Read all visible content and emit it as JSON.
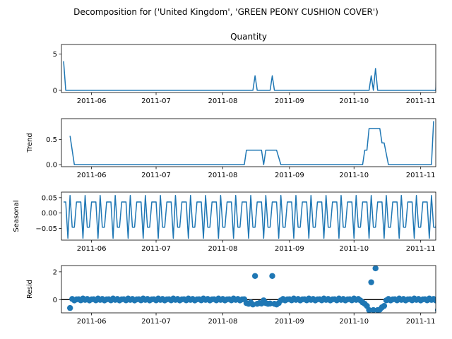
{
  "chart_data": {
    "type": "line",
    "suptitle": "Decomposition for ('United Kingdom', 'GREEN PEONY CUSHION COVER')",
    "x_start": "2011-05-19",
    "x_end": "2011-11-08",
    "xlim": [
      "2011-05-18",
      "2011-11-08"
    ],
    "xticks": [
      "2011-06-01",
      "2011-07-01",
      "2011-08-01",
      "2011-09-01",
      "2011-10-01",
      "2011-11-01"
    ],
    "xtick_labels": [
      "2011-06",
      "2011-07",
      "2011-08",
      "2011-09",
      "2011-10",
      "2011-11"
    ],
    "line_color": "#1f77b4",
    "panels": [
      {
        "id": "observed",
        "title": "Quantity",
        "ylabel": "",
        "style": "line",
        "ylim": [
          -0.3,
          6.3
        ],
        "yticks": [
          0,
          5
        ],
        "ytick_labels": [
          "0",
          "5"
        ],
        "baseline_zero": false,
        "default": 0,
        "values": [
          [
            0,
            4
          ],
          [
            1,
            0
          ],
          [
            88,
            0
          ],
          [
            89,
            2
          ],
          [
            90,
            0
          ],
          [
            96,
            0
          ],
          [
            97,
            2
          ],
          [
            98,
            0
          ],
          [
            142,
            0
          ],
          [
            143,
            2
          ],
          [
            144,
            0
          ],
          [
            145,
            3
          ],
          [
            146,
            0
          ],
          [
            173,
            0
          ],
          [
            174,
            6
          ]
        ]
      },
      {
        "id": "trend",
        "title": "",
        "ylabel": "Trend",
        "style": "line",
        "ylim": [
          -0.04,
          0.91
        ],
        "yticks": [
          0,
          0.5
        ],
        "ytick_labels": [
          "0.0",
          "0.5"
        ],
        "baseline_zero": false,
        "default": 0,
        "values": [
          [
            3,
            0.57
          ],
          [
            5,
            0
          ],
          [
            84,
            0
          ],
          [
            85,
            0.286
          ],
          [
            92,
            0.286
          ],
          [
            93,
            0
          ],
          [
            94,
            0.286
          ],
          [
            99,
            0.286
          ],
          [
            101,
            0
          ],
          [
            139,
            0
          ],
          [
            140,
            0.286
          ],
          [
            141,
            0.286
          ],
          [
            142,
            0.714
          ],
          [
            147,
            0.714
          ],
          [
            148,
            0.43
          ],
          [
            149,
            0.43
          ],
          [
            151,
            0
          ],
          [
            171,
            0
          ],
          [
            172,
            0.86
          ]
        ]
      },
      {
        "id": "seasonal",
        "title": "",
        "ylabel": "Seasonal",
        "style": "line",
        "ylim": [
          -0.088,
          0.068
        ],
        "yticks": [
          0.05,
          0,
          -0.05
        ],
        "ytick_labels": [
          "0.05",
          "0.00",
          "−0.05"
        ],
        "baseline_zero": false,
        "pattern": [
          0.036,
          0.036,
          -0.082,
          0.057,
          -0.046,
          -0.046,
          0.036
        ],
        "n": 175
      },
      {
        "id": "resid",
        "title": "",
        "ylabel": "Resid",
        "style": "scatter",
        "ylim": [
          -0.95,
          2.45
        ],
        "yticks": [
          0,
          2
        ],
        "ytick_labels": [
          "0",
          "2"
        ],
        "baseline_zero": true,
        "default": 0,
        "jitter": [
          0.03,
          -0.05,
          0.08,
          -0.02,
          0.05,
          -0.06,
          0.02
        ],
        "values": [
          [
            3,
            -0.6
          ],
          [
            85,
            -0.25
          ],
          [
            86,
            -0.3
          ],
          [
            87,
            -0.2
          ],
          [
            88,
            -0.35
          ],
          [
            89,
            1.7
          ],
          [
            90,
            -0.3
          ],
          [
            91,
            -0.25
          ],
          [
            92,
            -0.28
          ],
          [
            93,
            -0.05
          ],
          [
            94,
            -0.25
          ],
          [
            95,
            -0.3
          ],
          [
            96,
            -0.28
          ],
          [
            97,
            1.7
          ],
          [
            98,
            -0.3
          ],
          [
            99,
            -0.35
          ],
          [
            100,
            -0.25
          ],
          [
            101,
            -0.05
          ],
          [
            139,
            -0.2
          ],
          [
            140,
            -0.3
          ],
          [
            141,
            -0.45
          ],
          [
            142,
            -0.75
          ],
          [
            143,
            1.25
          ],
          [
            144,
            -0.75
          ],
          [
            145,
            2.25
          ],
          [
            146,
            -0.75
          ],
          [
            147,
            -0.72
          ],
          [
            148,
            -0.55
          ],
          [
            149,
            -0.45
          ],
          [
            150,
            -0.05
          ],
          [
            174,
            -0.75
          ]
        ]
      }
    ]
  }
}
